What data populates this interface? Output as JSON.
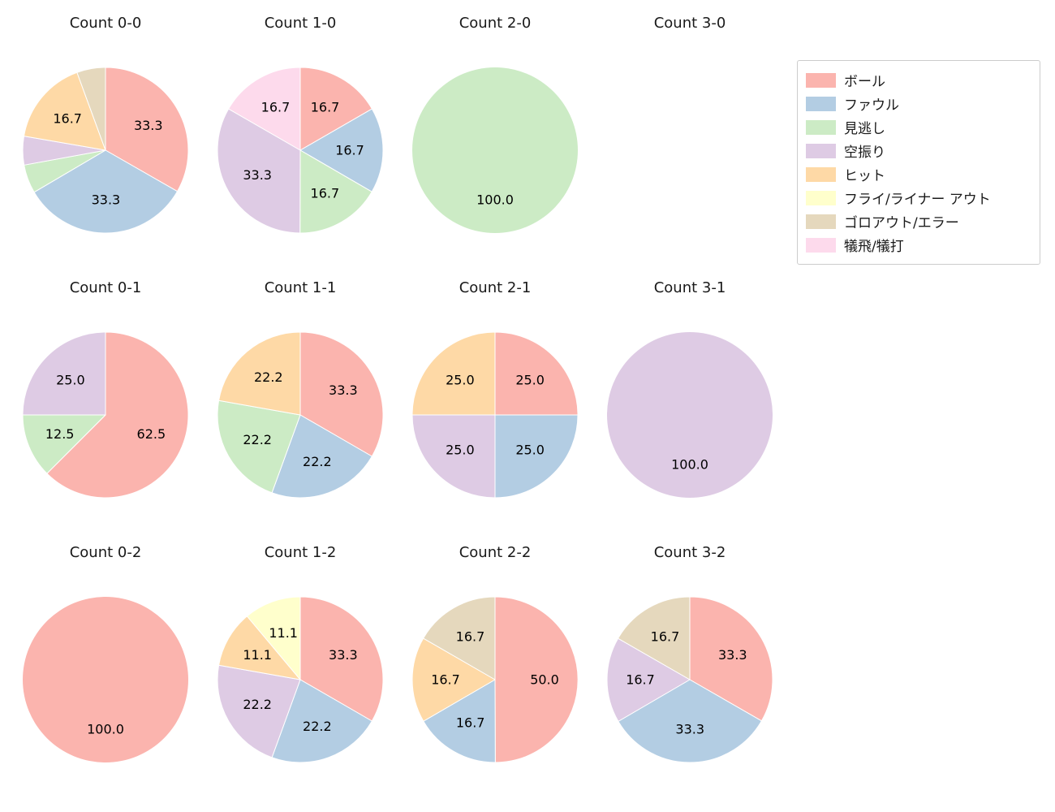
{
  "legend": {
    "items": [
      {
        "label": "ボール",
        "color": "#fbb4ae"
      },
      {
        "label": "ファウル",
        "color": "#b3cde3"
      },
      {
        "label": "見逃し",
        "color": "#ccebc5"
      },
      {
        "label": "空振り",
        "color": "#decbe4"
      },
      {
        "label": "ヒット",
        "color": "#fed9a6"
      },
      {
        "label": "フライ/ライナー アウト",
        "color": "#ffffcc"
      },
      {
        "label": "ゴロアウト/エラー",
        "color": "#e5d8bd"
      },
      {
        "label": "犠飛/犠打",
        "color": "#fddaec"
      }
    ]
  },
  "chart_data": {
    "type": "pie",
    "layout": {
      "rows": 3,
      "cols": 4,
      "legend_position": "upper right",
      "start_angle_deg_from_top": 0,
      "direction": "clockwise",
      "pct_label_distance": 0.6
    },
    "charts": [
      {
        "title": "Count 0-0",
        "slices": [
          {
            "name": "ボール",
            "value": 33.3,
            "label": "33.3"
          },
          {
            "name": "ファウル",
            "value": 33.3,
            "label": "33.3"
          },
          {
            "name": "見逃し",
            "value": 5.6,
            "label": null
          },
          {
            "name": "空振り",
            "value": 5.6,
            "label": null
          },
          {
            "name": "ヒット",
            "value": 16.7,
            "label": "16.7"
          },
          {
            "name": "ゴロアウト/エラー",
            "value": 5.6,
            "label": null
          }
        ]
      },
      {
        "title": "Count 1-0",
        "slices": [
          {
            "name": "ボール",
            "value": 16.7,
            "label": "16.7"
          },
          {
            "name": "ファウル",
            "value": 16.7,
            "label": "16.7"
          },
          {
            "name": "見逃し",
            "value": 16.7,
            "label": "16.7"
          },
          {
            "name": "空振り",
            "value": 33.3,
            "label": "33.3"
          },
          {
            "name": "犠飛/犠打",
            "value": 16.7,
            "label": "16.7"
          }
        ]
      },
      {
        "title": "Count 2-0",
        "slices": [
          {
            "name": "見逃し",
            "value": 100.0,
            "label": "100.0"
          }
        ]
      },
      {
        "title": "Count 3-0",
        "slices": []
      },
      {
        "title": "Count 0-1",
        "slices": [
          {
            "name": "ボール",
            "value": 62.5,
            "label": "62.5"
          },
          {
            "name": "見逃し",
            "value": 12.5,
            "label": "12.5"
          },
          {
            "name": "空振り",
            "value": 25.0,
            "label": "25.0"
          }
        ]
      },
      {
        "title": "Count 1-1",
        "slices": [
          {
            "name": "ボール",
            "value": 33.3,
            "label": "33.3"
          },
          {
            "name": "ファウル",
            "value": 22.2,
            "label": "22.2"
          },
          {
            "name": "見逃し",
            "value": 22.2,
            "label": "22.2"
          },
          {
            "name": "ヒット",
            "value": 22.2,
            "label": "22.2"
          }
        ]
      },
      {
        "title": "Count 2-1",
        "slices": [
          {
            "name": "ボール",
            "value": 25.0,
            "label": "25.0"
          },
          {
            "name": "ファウル",
            "value": 25.0,
            "label": "25.0"
          },
          {
            "name": "空振り",
            "value": 25.0,
            "label": "25.0"
          },
          {
            "name": "ヒット",
            "value": 25.0,
            "label": "25.0"
          }
        ]
      },
      {
        "title": "Count 3-1",
        "slices": [
          {
            "name": "空振り",
            "value": 100.0,
            "label": "100.0"
          }
        ]
      },
      {
        "title": "Count 0-2",
        "slices": [
          {
            "name": "ボール",
            "value": 100.0,
            "label": "100.0"
          }
        ]
      },
      {
        "title": "Count 1-2",
        "slices": [
          {
            "name": "ボール",
            "value": 33.3,
            "label": "33.3"
          },
          {
            "name": "ファウル",
            "value": 22.2,
            "label": "22.2"
          },
          {
            "name": "空振り",
            "value": 22.2,
            "label": "22.2"
          },
          {
            "name": "ヒット",
            "value": 11.1,
            "label": "11.1"
          },
          {
            "name": "フライ/ライナー アウト",
            "value": 11.1,
            "label": "11.1"
          }
        ]
      },
      {
        "title": "Count 2-2",
        "slices": [
          {
            "name": "ボール",
            "value": 50.0,
            "label": "50.0"
          },
          {
            "name": "ファウル",
            "value": 16.7,
            "label": "16.7"
          },
          {
            "name": "ヒット",
            "value": 16.7,
            "label": "16.7"
          },
          {
            "name": "ゴロアウト/エラー",
            "value": 16.7,
            "label": "16.7"
          }
        ]
      },
      {
        "title": "Count 3-2",
        "slices": [
          {
            "name": "ボール",
            "value": 33.3,
            "label": "33.3"
          },
          {
            "name": "ファウル",
            "value": 33.3,
            "label": "33.3"
          },
          {
            "name": "空振り",
            "value": 16.7,
            "label": "16.7"
          },
          {
            "name": "ゴロアウト/エラー",
            "value": 16.7,
            "label": "16.7"
          }
        ]
      }
    ]
  }
}
